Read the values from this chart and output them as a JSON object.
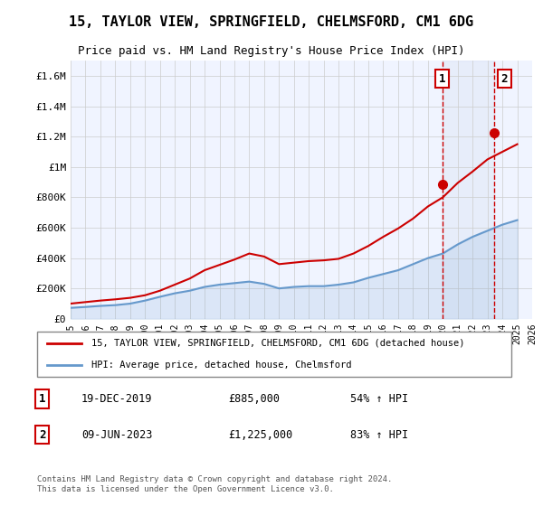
{
  "title": "15, TAYLOR VIEW, SPRINGFIELD, CHELMSFORD, CM1 6DG",
  "subtitle": "Price paid vs. HM Land Registry's House Price Index (HPI)",
  "legend_line1": "15, TAYLOR VIEW, SPRINGFIELD, CHELMSFORD, CM1 6DG (detached house)",
  "legend_line2": "HPI: Average price, detached house, Chelmsford",
  "annotation1_label": "1",
  "annotation1_date": "19-DEC-2019",
  "annotation1_value": "£885,000",
  "annotation1_pct": "54% ↑ HPI",
  "annotation2_label": "2",
  "annotation2_date": "09-JUN-2023",
  "annotation2_value": "£1,225,000",
  "annotation2_pct": "83% ↑ HPI",
  "footer": "Contains HM Land Registry data © Crown copyright and database right 2024.\nThis data is licensed under the Open Government Licence v3.0.",
  "red_color": "#cc0000",
  "blue_color": "#6699cc",
  "dashed_red": "#cc0000",
  "grid_color": "#cccccc",
  "bg_color": "#ffffff",
  "plot_bg": "#f0f4ff",
  "ylim": [
    0,
    1700000
  ],
  "yticks": [
    0,
    200000,
    400000,
    600000,
    800000,
    1000000,
    1200000,
    1400000,
    1600000
  ],
  "ytick_labels": [
    "£0",
    "£200K",
    "£400K",
    "£600K",
    "£800K",
    "£1M",
    "£1.2M",
    "£1.4M",
    "£1.6M"
  ],
  "xmin_year": 1995,
  "xmax_year": 2026,
  "xtick_years": [
    1995,
    1996,
    1997,
    1998,
    1999,
    2000,
    2001,
    2002,
    2003,
    2004,
    2005,
    2006,
    2007,
    2008,
    2009,
    2010,
    2011,
    2012,
    2013,
    2014,
    2015,
    2016,
    2017,
    2018,
    2019,
    2020,
    2021,
    2022,
    2023,
    2024,
    2025,
    2026
  ],
  "marker1_x": 2019.97,
  "marker1_y": 885000,
  "marker2_x": 2023.44,
  "marker2_y": 1225000,
  "vline1_x": 2019.97,
  "vline2_x": 2023.44,
  "hpi_years": [
    1995,
    1996,
    1997,
    1998,
    1999,
    2000,
    2001,
    2002,
    2003,
    2004,
    2005,
    2006,
    2007,
    2008,
    2009,
    2010,
    2011,
    2012,
    2013,
    2014,
    2015,
    2016,
    2017,
    2018,
    2019,
    2020,
    2021,
    2022,
    2023,
    2024,
    2025
  ],
  "hpi_values": [
    72000,
    78000,
    85000,
    90000,
    100000,
    120000,
    145000,
    168000,
    185000,
    210000,
    225000,
    235000,
    245000,
    230000,
    200000,
    210000,
    215000,
    215000,
    225000,
    240000,
    270000,
    295000,
    320000,
    360000,
    400000,
    430000,
    490000,
    540000,
    580000,
    620000,
    650000
  ],
  "prop_years": [
    1995,
    1996,
    1997,
    1998,
    1999,
    2000,
    2001,
    2002,
    2003,
    2004,
    2005,
    2006,
    2007,
    2008,
    2009,
    2010,
    2011,
    2012,
    2013,
    2014,
    2015,
    2016,
    2017,
    2018,
    2019,
    2020,
    2021,
    2022,
    2023,
    2024,
    2025
  ],
  "prop_values": [
    100000,
    110000,
    120000,
    128000,
    138000,
    155000,
    185000,
    225000,
    265000,
    320000,
    355000,
    390000,
    430000,
    410000,
    360000,
    370000,
    380000,
    385000,
    395000,
    430000,
    480000,
    540000,
    595000,
    660000,
    740000,
    800000,
    895000,
    970000,
    1050000,
    1100000,
    1150000
  ]
}
